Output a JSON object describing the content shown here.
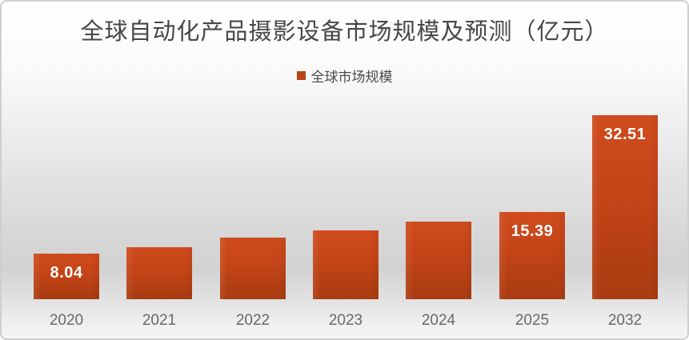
{
  "chart": {
    "title": "全球自动化产品摄影设备市场规模及预测（亿元）",
    "legend": "全球市场规模"
  },
  "chart_data": {
    "type": "bar",
    "title": "全球自动化产品摄影设备市场规模及预测（亿元）",
    "legend_entries": [
      "全球市场规模"
    ],
    "legend_position": "top-center",
    "xlabel": "",
    "ylabel": "",
    "categories": [
      "2020",
      "2021",
      "2022",
      "2023",
      "2024",
      "2025",
      "2032"
    ],
    "values": [
      8.04,
      9.2,
      10.9,
      12.1,
      13.7,
      15.39,
      32.51
    ],
    "data_labels": [
      "8.04",
      "",
      "",
      "",
      "",
      "15.39",
      "32.51"
    ],
    "ylim": [
      0,
      34
    ],
    "grid": false,
    "axis_line": false,
    "colors": {
      "bar_top": "#cf4b1d",
      "bar_mid": "#c44418",
      "bar_bottom": "#a93b10",
      "legend_swatch": "#b64417",
      "data_label": "#ffffff",
      "axis_label": "#696969",
      "title_text": "#474747",
      "card_border": "#cfcfcf"
    }
  }
}
